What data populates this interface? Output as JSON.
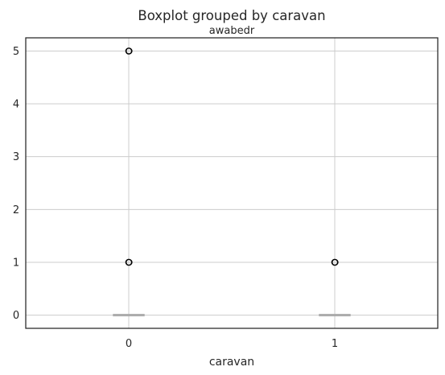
{
  "chart_data": {
    "type": "boxplot",
    "suptitle": "Boxplot grouped by caravan",
    "title": "awabedr",
    "xlabel": "caravan",
    "ylabel": "",
    "categories": [
      "0",
      "1"
    ],
    "ylim": [
      -0.25,
      5.25
    ],
    "yticks": [
      "0",
      "1",
      "2",
      "3",
      "4",
      "5"
    ],
    "grid": true,
    "groups": [
      {
        "category": "0",
        "q1": 0,
        "median": 0,
        "q3": 0,
        "whisker_low": 0,
        "whisker_high": 0,
        "outliers": [
          1,
          5
        ]
      },
      {
        "category": "1",
        "q1": 0,
        "median": 0,
        "q3": 0,
        "whisker_low": 0,
        "whisker_high": 0,
        "outliers": [
          1
        ]
      }
    ],
    "colors": {
      "box": "#aaaaaa",
      "grid": "#cccccc",
      "axis": "#262626",
      "outlier": "#000000"
    }
  }
}
